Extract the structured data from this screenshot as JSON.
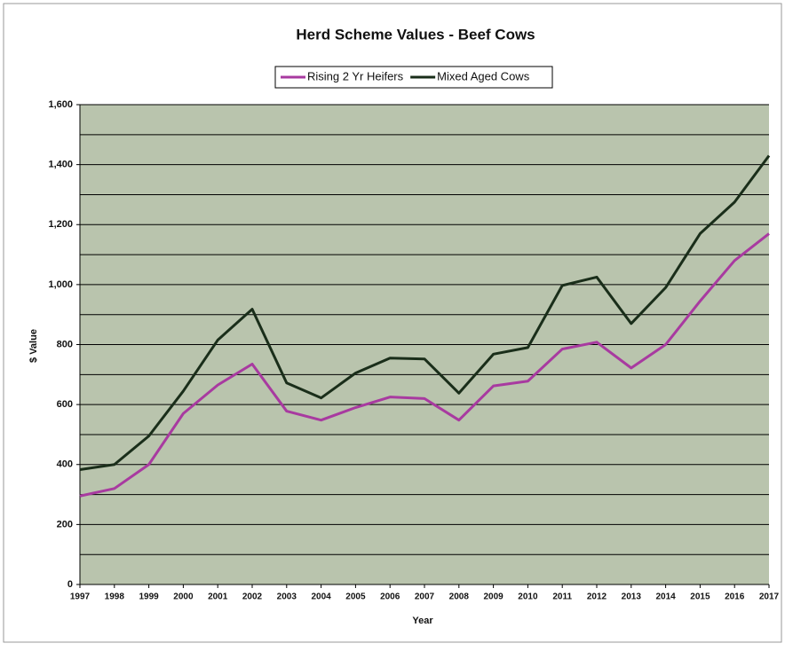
{
  "chart_data": {
    "type": "line",
    "title": "Herd Scheme Values - Beef Cows",
    "x_label": "Year",
    "y_label": "$ Value",
    "x": [
      1997,
      1998,
      1999,
      2000,
      2001,
      2002,
      2003,
      2004,
      2005,
      2006,
      2007,
      2008,
      2009,
      2010,
      2011,
      2012,
      2013,
      2014,
      2015,
      2016,
      2017
    ],
    "xlim": [
      1997,
      2017
    ],
    "xticks": [
      1997,
      1998,
      1999,
      2000,
      2001,
      2002,
      2003,
      2004,
      2005,
      2006,
      2007,
      2008,
      2009,
      2010,
      2011,
      2012,
      2013,
      2014,
      2015,
      2016,
      2017
    ],
    "ylim": [
      0,
      1600
    ],
    "yticks": [
      0,
      200,
      400,
      600,
      800,
      {
        "value": 1000,
        "label": "1,000"
      },
      {
        "value": 1200,
        "label": "1,200"
      },
      {
        "value": 1400,
        "label": "1,400"
      },
      {
        "value": 1600,
        "label": "1,600"
      }
    ],
    "minor_yticks": [
      100,
      300,
      500,
      700,
      900,
      1100,
      1300,
      1500
    ],
    "grid": true,
    "legend": "top",
    "series": [
      {
        "name": "Rising 2 Yr Heifers",
        "color": "#a83aa0",
        "values": [
          295,
          320,
          400,
          570,
          665,
          735,
          578,
          548,
          590,
          625,
          620,
          548,
          662,
          678,
          785,
          808,
          722,
          800,
          945,
          1080,
          1170
        ]
      },
      {
        "name": "Mixed Aged Cows",
        "color": "#1a2e1a",
        "values": [
          383,
          400,
          495,
          645,
          815,
          918,
          672,
          622,
          705,
          755,
          752,
          638,
          768,
          790,
          997,
          1025,
          870,
          990,
          1170,
          1275,
          1430
        ]
      }
    ]
  }
}
